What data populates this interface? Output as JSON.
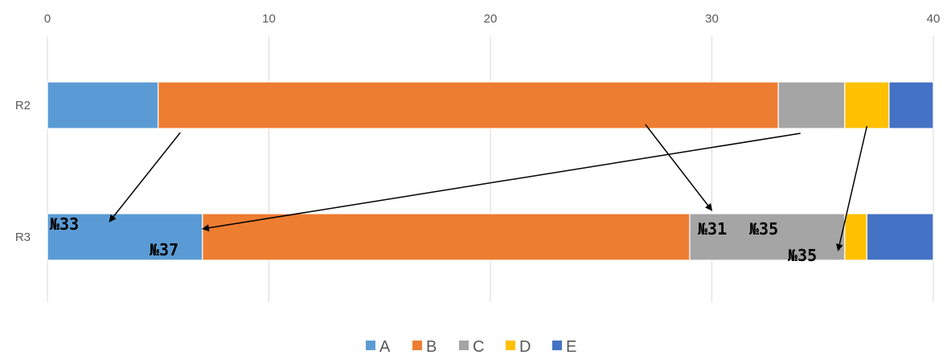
{
  "chart_data": {
    "type": "bar",
    "orientation": "horizontal",
    "stacked": true,
    "categories": [
      "R2",
      "R3"
    ],
    "xlim": [
      0,
      40
    ],
    "x_ticks": [
      0,
      10,
      20,
      30,
      40
    ],
    "grid": true,
    "legend_position": "bottom",
    "series": [
      {
        "name": "A",
        "color": "#5B9BD5",
        "values": [
          5,
          7
        ]
      },
      {
        "name": "B",
        "color": "#ED7D31",
        "values": [
          28,
          22
        ]
      },
      {
        "name": "C",
        "color": "#A5A5A5",
        "values": [
          3,
          7
        ]
      },
      {
        "name": "D",
        "color": "#FFC000",
        "values": [
          2,
          1
        ]
      },
      {
        "name": "E",
        "color": "#4472C4",
        "values": [
          2,
          3
        ]
      }
    ],
    "annotations": [
      {
        "text": "№33"
      },
      {
        "text": "№37"
      },
      {
        "text": "№31"
      },
      {
        "text": "№35"
      },
      {
        "text": "№35"
      }
    ],
    "arrows": [
      {
        "from": {
          "category": "R2",
          "x": 6
        },
        "to": {
          "category": "R3",
          "x": 2.8
        }
      },
      {
        "from": {
          "category": "R2",
          "x": 34
        },
        "to": {
          "category": "R3",
          "x": 7
        }
      },
      {
        "from": {
          "category": "R2",
          "x": 27
        },
        "to": {
          "category": "R3",
          "x": 30
        }
      },
      {
        "from": {
          "category": "R2",
          "x": 37
        },
        "to": {
          "category": "R3",
          "x": 35.7
        }
      }
    ]
  }
}
